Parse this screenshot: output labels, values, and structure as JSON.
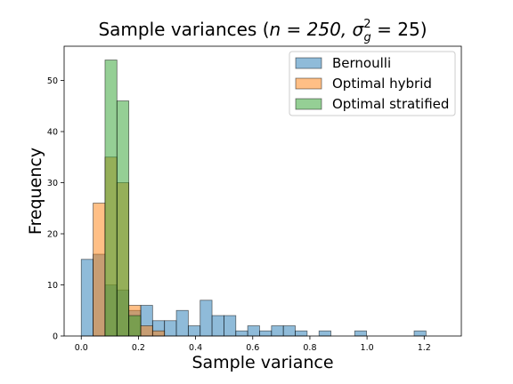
{
  "chart_data": {
    "type": "bar",
    "title_main": "Sample variances (",
    "title_math": "n = 250, σ",
    "title_sub": "g",
    "title_sup": "2",
    "title_tail": " = 25)",
    "xlabel": "Sample variance",
    "ylabel": "Frequency",
    "xlim": [
      -0.06,
      1.33
    ],
    "ylim": [
      0,
      56.7
    ],
    "xticks": [
      0.0,
      0.2,
      0.4,
      0.6,
      0.8,
      1.0,
      1.2
    ],
    "xtick_labels": [
      "0.0",
      "0.2",
      "0.4",
      "0.6",
      "0.8",
      "1.0",
      "1.2"
    ],
    "yticks": [
      0,
      10,
      20,
      30,
      40,
      50
    ],
    "ytick_labels": [
      "0",
      "10",
      "20",
      "30",
      "40",
      "50"
    ],
    "legend_position": "top-right",
    "series": [
      {
        "name": "Bernoulli",
        "color": "#1f77b4",
        "bin_edges": [
          0.0,
          0.0416,
          0.0832,
          0.1248,
          0.1664,
          0.208,
          0.2496,
          0.2912,
          0.3328,
          0.3744,
          0.416,
          0.4576,
          0.4992,
          0.5408,
          0.5824,
          0.624,
          0.6656,
          0.7072,
          0.7488,
          0.7904,
          0.832,
          0.8736,
          0.9152,
          0.9568,
          0.9984,
          1.04,
          1.0816,
          1.1232,
          1.1648,
          1.2064
        ],
        "counts": [
          15,
          16,
          10,
          9,
          5,
          6,
          3,
          3,
          5,
          2,
          7,
          4,
          4,
          1,
          2,
          1,
          2,
          2,
          1,
          0,
          1,
          0,
          0,
          1,
          0,
          0,
          0,
          0,
          1
        ]
      },
      {
        "name": "Optimal hybrid",
        "color": "#ff7f0e",
        "bin_edges": [
          0.0416,
          0.0832,
          0.1248,
          0.1664,
          0.208,
          0.2496,
          0.2912
        ],
        "counts": [
          26,
          35,
          30,
          6,
          2,
          1
        ]
      },
      {
        "name": "Optimal stratified",
        "color": "#2ca02c",
        "bin_edges": [
          0.0832,
          0.1248,
          0.1664,
          0.208
        ],
        "counts": [
          54,
          46,
          4
        ]
      }
    ]
  }
}
